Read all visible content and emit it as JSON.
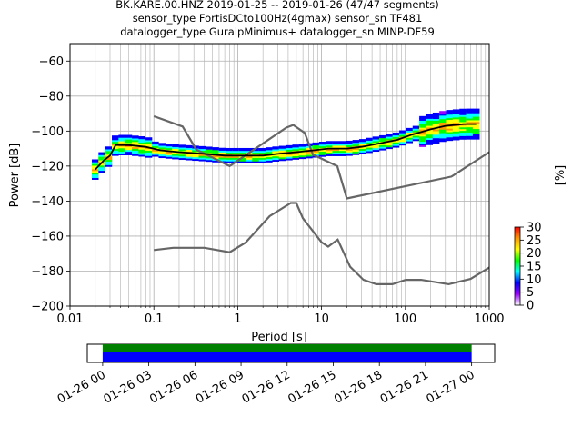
{
  "chart_data": [
    {
      "type": "heatmap",
      "title_lines": [
        "BK.KARE.00.HNZ   2019-01-25 -- 2019-01-26  (47/47 segments)",
        "sensor_type FortisDCto100Hz(4gmax) sensor_sn TF481",
        "datalogger_type GuralpMinimus+ datalogger_sn MINP-DF59"
      ],
      "xlabel": "Period [s]",
      "ylabel": "Power [dB]",
      "xscale": "log",
      "xlim": [
        0.01,
        1000
      ],
      "ylim": [
        -200,
        -50
      ],
      "xticks": [
        {
          "value": 0.01,
          "label": "0.01"
        },
        {
          "value": 0.1,
          "label": "0.1"
        },
        {
          "value": 1,
          "label": "1"
        },
        {
          "value": 10,
          "label": "10"
        },
        {
          "value": 100,
          "label": "100"
        },
        {
          "value": 1000,
          "label": "1000"
        }
      ],
      "yticks": [
        {
          "value": -60,
          "label": "−60"
        },
        {
          "value": -80,
          "label": "−80"
        },
        {
          "value": -100,
          "label": "−100"
        },
        {
          "value": -120,
          "label": "−120"
        },
        {
          "value": -140,
          "label": "−140"
        },
        {
          "value": -160,
          "label": "−160"
        },
        {
          "value": -180,
          "label": "−180"
        },
        {
          "value": -200,
          "label": "−200"
        }
      ],
      "grid": true,
      "mean_curve": {
        "color": "#000000",
        "x": [
          0.02,
          0.025,
          0.03,
          0.035,
          0.05,
          0.08,
          0.12,
          0.2,
          0.4,
          0.7,
          1,
          2,
          3,
          5,
          8,
          12,
          20,
          30,
          50,
          80,
          120,
          200,
          300,
          500,
          700
        ],
        "y": [
          -122,
          -117,
          -114,
          -108,
          -108,
          -109,
          -111,
          -112,
          -113,
          -114,
          -114,
          -114,
          -113,
          -112,
          -111,
          -110,
          -110,
          -109,
          -107,
          -105,
          -102,
          -99,
          -97,
          -96,
          -96
        ]
      },
      "noise_models": {
        "color": "#666666",
        "high": {
          "x": [
            0.1,
            0.22,
            0.32,
            0.8,
            3.8,
            4.6,
            6.3,
            7.9,
            15.4,
            20,
            354.8,
            1000
          ],
          "y": [
            -91.5,
            -97.4,
            -110.5,
            -120,
            -98,
            -96.5,
            -101,
            -113.5,
            -120,
            -138.5,
            -126,
            -112
          ]
        },
        "low": {
          "x": [
            0.1,
            0.17,
            0.4,
            0.8,
            1.24,
            2.4,
            4.3,
            5,
            6,
            10,
            12,
            15.6,
            21.9,
            31.6,
            45,
            70,
            101,
            154,
            328,
            600,
            1000
          ],
          "y": [
            -168,
            -166.7,
            -166.7,
            -169.2,
            -163.7,
            -148.6,
            -141.1,
            -141.1,
            -149.8,
            -163.5,
            -166,
            -162,
            -177.5,
            -185,
            -187.5,
            -187.5,
            -185,
            -185,
            -187.5,
            -184.5,
            -178
          ]
        }
      },
      "colorbar": {
        "label": "[%]",
        "range": [
          0,
          30
        ],
        "ticks": [
          {
            "value": 0,
            "label": "0"
          },
          {
            "value": 5,
            "label": "5"
          },
          {
            "value": 10,
            "label": "10"
          },
          {
            "value": 15,
            "label": "15"
          },
          {
            "value": 20,
            "label": "20"
          },
          {
            "value": 25,
            "label": "25"
          },
          {
            "value": 30,
            "label": "30"
          }
        ],
        "colors": [
          "#ffffff",
          "#9900ff",
          "#0000ff",
          "#00ffff",
          "#00ff00",
          "#ffff00",
          "#ff9900",
          "#ff0000"
        ]
      }
    },
    {
      "type": "timeline",
      "xlim": [
        "2019-01-25 23:00",
        "2019-01-27 01:30"
      ],
      "xticks": [
        {
          "value": "2019-01-26 00:00",
          "label": "01-26 00"
        },
        {
          "value": "2019-01-26 03:00",
          "label": "01-26 03"
        },
        {
          "value": "2019-01-26 06:00",
          "label": "01-26 06"
        },
        {
          "value": "2019-01-26 09:00",
          "label": "01-26 09"
        },
        {
          "value": "2019-01-26 12:00",
          "label": "01-26 12"
        },
        {
          "value": "2019-01-26 15:00",
          "label": "01-26 15"
        },
        {
          "value": "2019-01-26 18:00",
          "label": "01-26 18"
        },
        {
          "value": "2019-01-26 21:00",
          "label": "01-26 21"
        },
        {
          "value": "2019-01-27 00:00",
          "label": "01-27 00"
        }
      ],
      "coverage": [
        {
          "start": "2019-01-26 00:00",
          "end": "2019-01-27 00:00",
          "row": "top",
          "color": "#008000"
        },
        {
          "start": "2019-01-26 00:00",
          "end": "2019-01-27 00:00",
          "row": "bottom",
          "color": "#0000ff"
        }
      ]
    }
  ]
}
